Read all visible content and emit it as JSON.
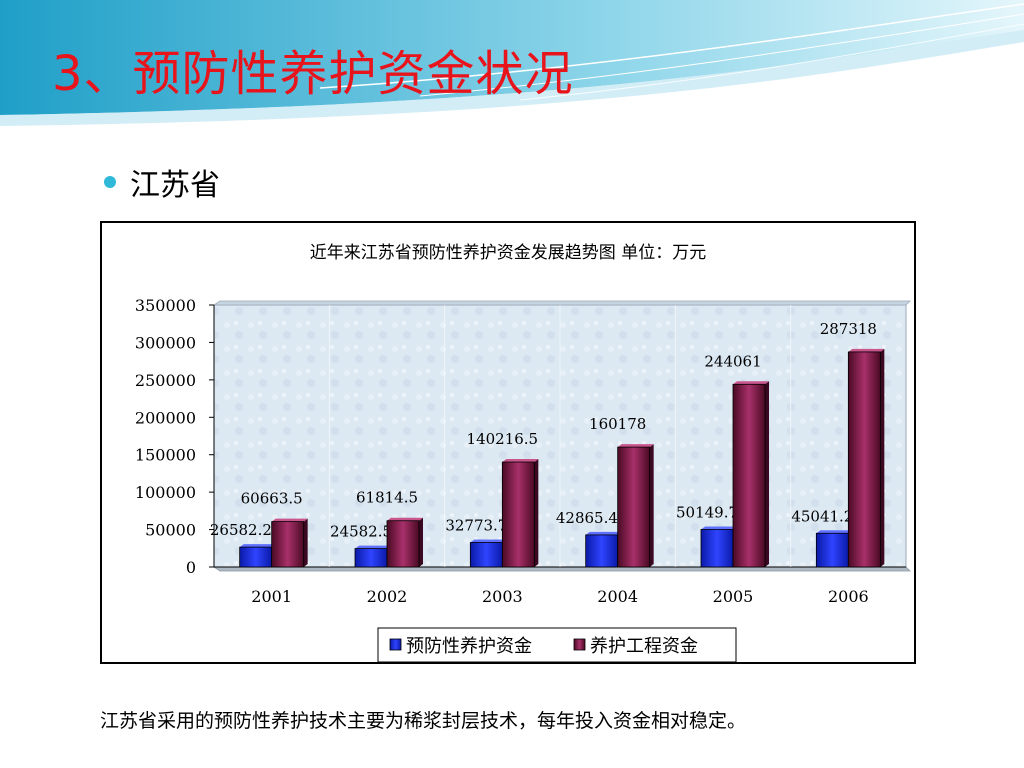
{
  "slide": {
    "title": "3、预防性养护资金状况",
    "bullet": "江苏省",
    "footnote": "江苏省采用的预防性养护技术主要为稀浆封层技术，每年投入资金相对稳定。"
  },
  "colors": {
    "title": "#e8141c",
    "bullet": "#2fb8d8",
    "series_preventive": "#1c2ee0",
    "series_engineering": "#8b1a4e",
    "plot_background": "#dce8f2"
  },
  "chart_data": {
    "type": "bar",
    "title": "近年来江苏省预防性养护资金发展趋势图 单位：万元",
    "categories": [
      "2001",
      "2002",
      "2003",
      "2004",
      "2005",
      "2006"
    ],
    "series": [
      {
        "name": "预防性养护资金",
        "values": [
          26582.25,
          24582.5,
          32773.7,
          42865.45,
          50149.7,
          45041.2
        ],
        "labels": [
          "26582.25",
          "24582.5",
          "32773.7",
          "42865.45",
          "50149.7",
          "45041.2"
        ]
      },
      {
        "name": "养护工程资金",
        "values": [
          60663.5,
          61814.5,
          140216.5,
          160178,
          244061,
          287318
        ],
        "labels": [
          "60663.5",
          "61814.5",
          "140216.5",
          "160178",
          "244061",
          "287318"
        ]
      }
    ],
    "ylim": [
      0,
      350000
    ],
    "yticks": [
      "0",
      "50000",
      "100000",
      "150000",
      "200000",
      "250000",
      "300000",
      "350000"
    ],
    "legend_position": "bottom",
    "grid": false
  }
}
